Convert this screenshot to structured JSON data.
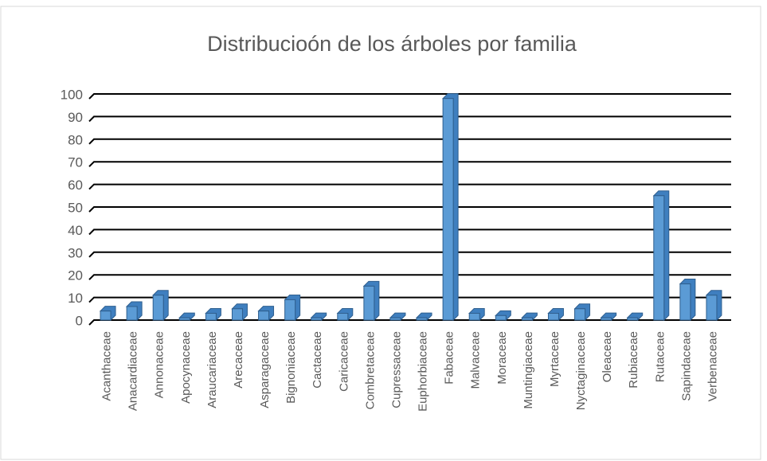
{
  "chart_data": {
    "type": "bar3d",
    "title": "Distribucioón de los árboles por familia",
    "categories": [
      "Acanthaceae",
      "Anacardiaceae",
      "Annonaceae",
      "Apocynaceae",
      "Araucariaceae",
      "Arecaceae",
      "Asparagaceae",
      "Bignoniaceae",
      "Cactaceae",
      "Caricaceae",
      "Combretaceae",
      "Cupressaceae",
      "Euphorbiaceae",
      "Fabaceae",
      "Malvaceae",
      "Moraceae",
      "Muntingiaceae",
      "Myrtaceae",
      "Nyctaginaceae",
      "Oleaceae",
      "Rubiaceae",
      "Rutaceae",
      "Sapindaceae",
      "Verbenaceae"
    ],
    "values": [
      4,
      6,
      11,
      1,
      3,
      5,
      4,
      9,
      1,
      3,
      15,
      1,
      1,
      98,
      3,
      2,
      1,
      3,
      5,
      1,
      1,
      55,
      16,
      11
    ],
    "color": "#5b9bd5",
    "ylim": [
      0,
      100
    ],
    "yticks": [
      0,
      10,
      20,
      30,
      40,
      50,
      60,
      70,
      80,
      90,
      100
    ],
    "grid": true
  }
}
